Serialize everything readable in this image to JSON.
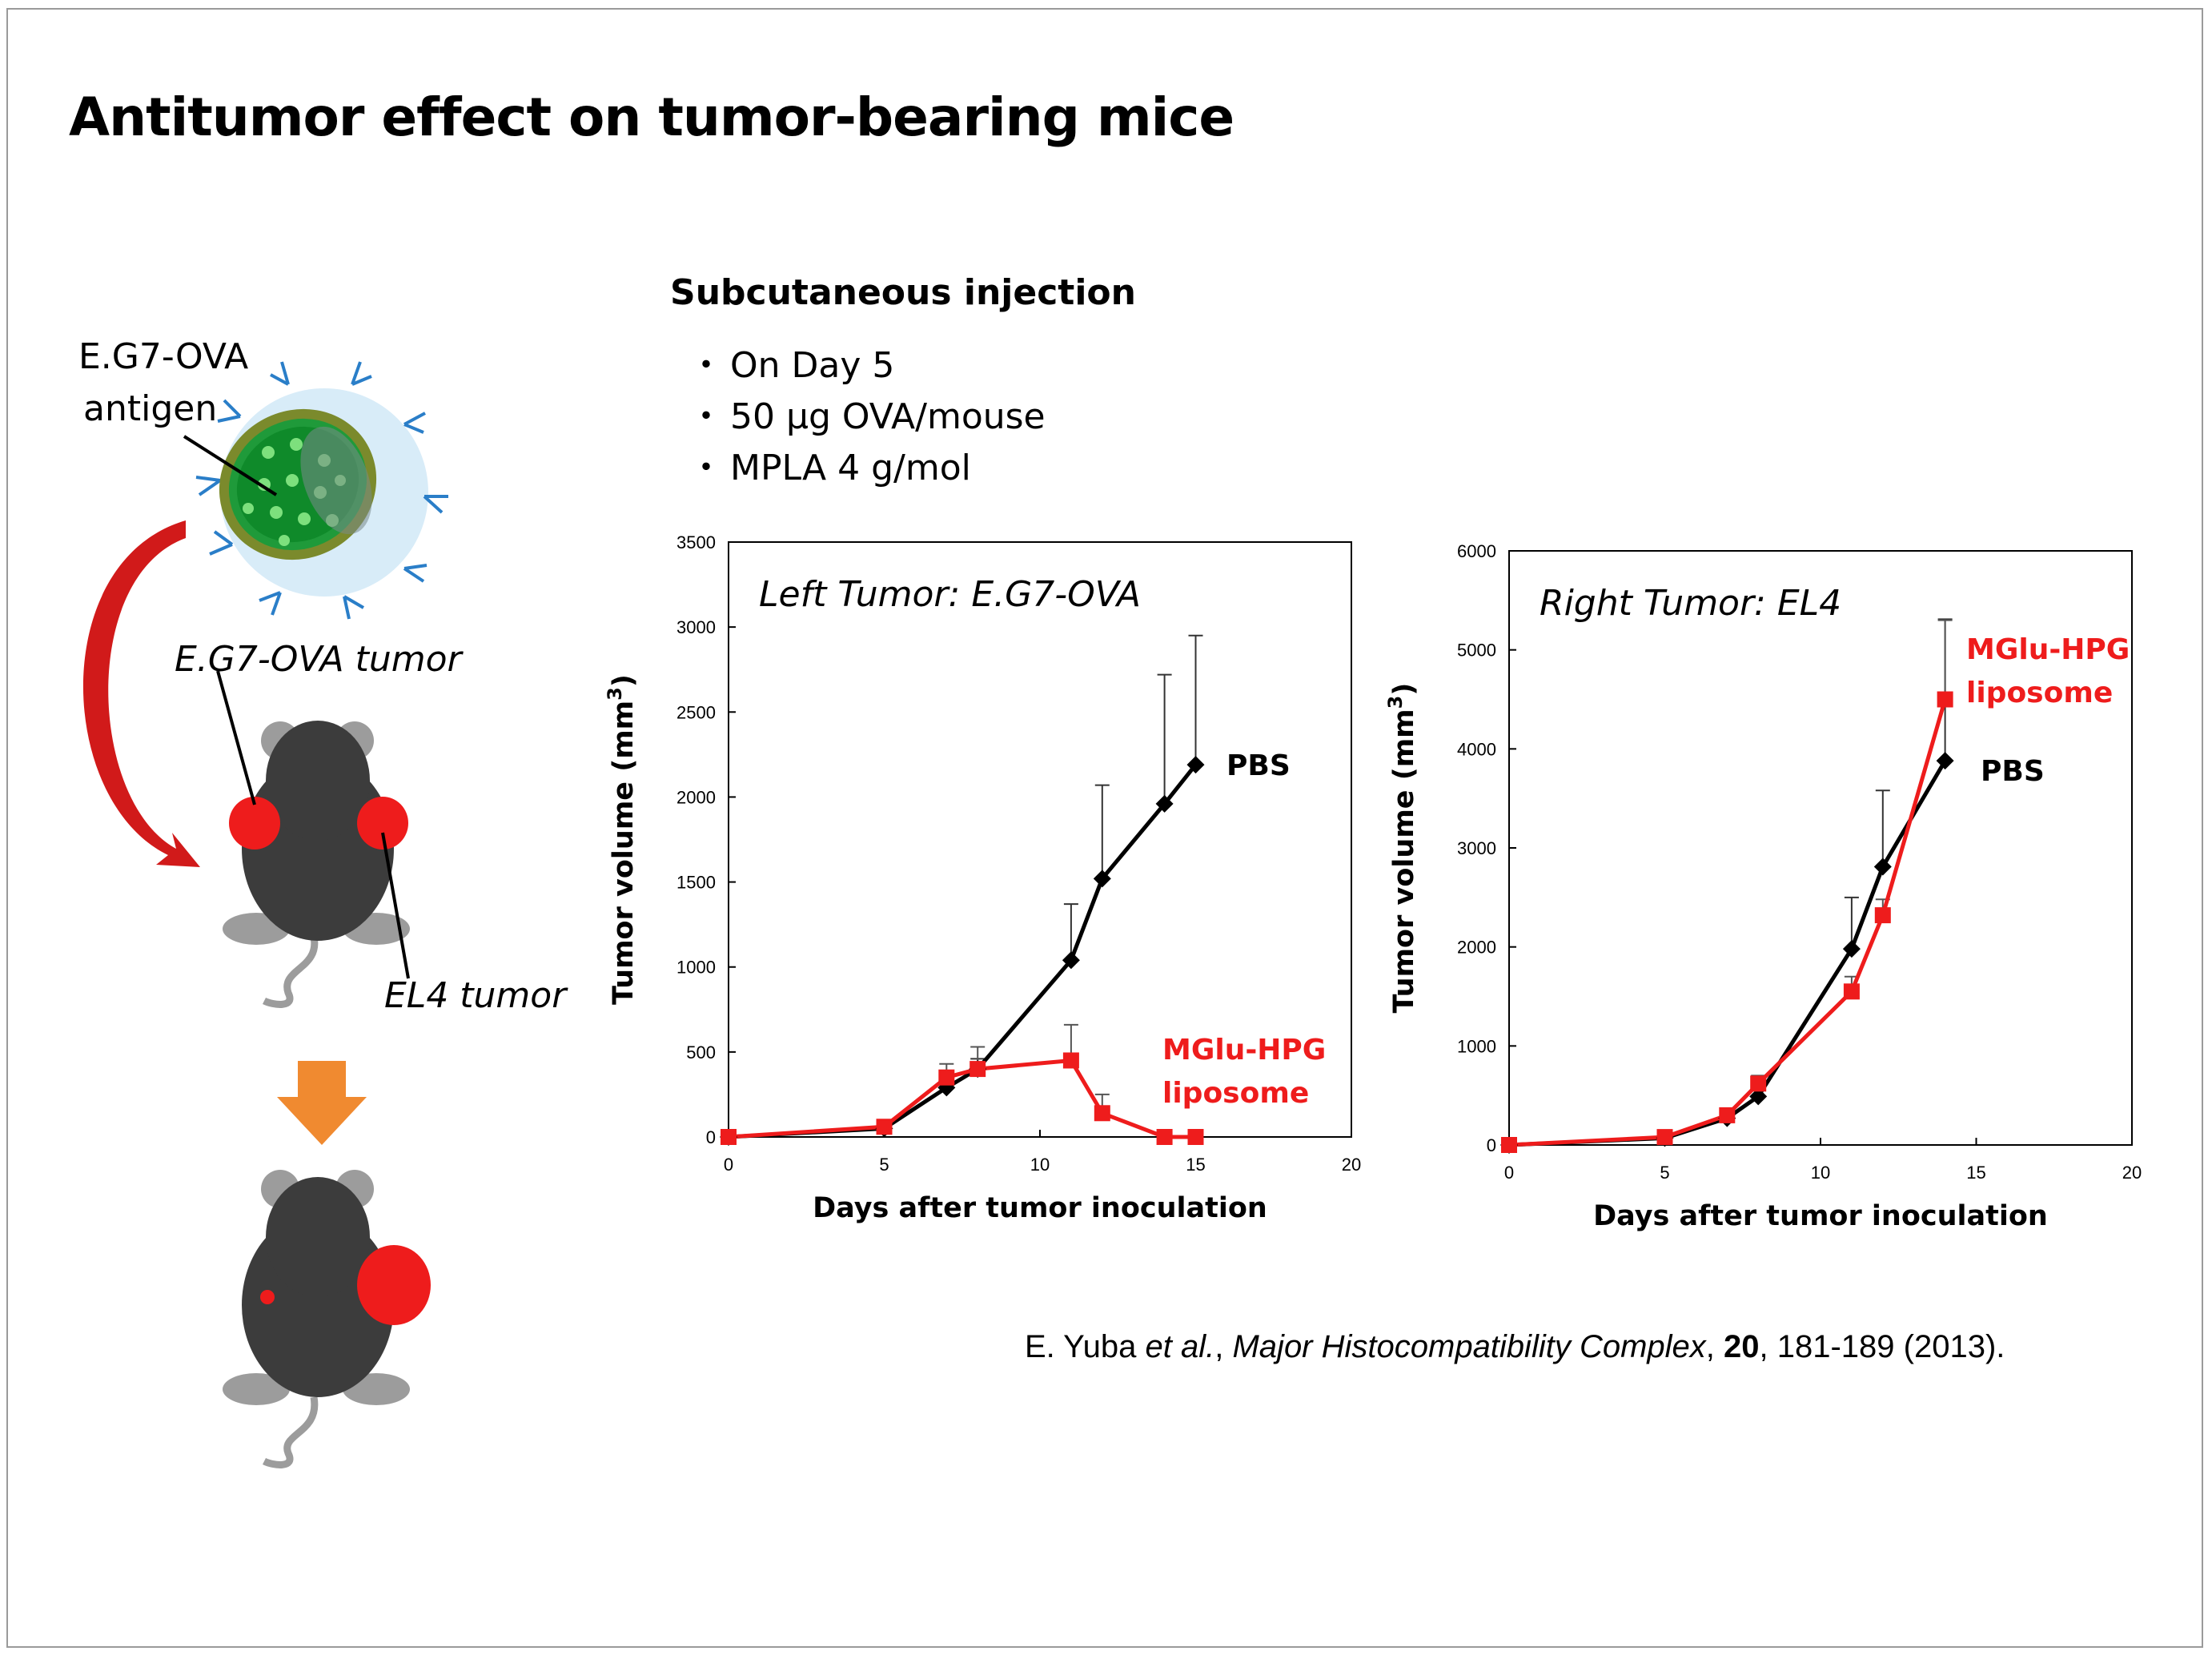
{
  "title": "Antitumor effect on tumor-bearing mice",
  "injection": {
    "title": "Subcutaneous injection",
    "bullets": [
      "On Day 5",
      "50 µg OVA/mouse",
      "MPLA 4 g/mol"
    ]
  },
  "diagram": {
    "antigen_label_1": "E.G7-OVA",
    "antigen_label_2": "antigen",
    "eg7_tumor_label": "E.G7-OVA tumor",
    "el4_tumor_label": "EL4 tumor"
  },
  "citation": {
    "authors": "E. Yuba",
    "etal": "et al.",
    "journal": "Major Histocompatibility Complex",
    "volume": "20",
    "rest": ", 181-189 (2013)."
  },
  "colors": {
    "pbs": "#000000",
    "liposome": "#ee1c1c",
    "tumor": "#ee1c1c",
    "mouse": "#3c3c3c",
    "arrow": "#f08a30"
  },
  "chart_data": [
    {
      "type": "line",
      "title": "Left Tumor: E.G7-OVA",
      "xlabel": "Days after tumor inoculation",
      "ylabel_main": "Tumor volume (mm",
      "ylabel_sup": "3",
      "ylabel_end": ")",
      "xlim": [
        0,
        20
      ],
      "ylim": [
        0,
        3500
      ],
      "xticks": [
        0,
        5,
        10,
        15,
        20
      ],
      "yticks": [
        0,
        500,
        1000,
        1500,
        2000,
        2500,
        3000,
        3500
      ],
      "series": [
        {
          "name": "PBS",
          "color": "#000000",
          "marker": "diamond",
          "x": [
            0,
            5,
            7,
            8,
            11,
            12,
            14,
            15
          ],
          "y": [
            0,
            50,
            290,
            400,
            1040,
            1520,
            1960,
            2190
          ],
          "err": [
            0,
            15,
            40,
            60,
            330,
            550,
            760,
            760
          ]
        },
        {
          "name_1": "MGlu-HPG",
          "name_2": "liposome",
          "color": "#ee1c1c",
          "marker": "square",
          "x": [
            0,
            5,
            7,
            8,
            11,
            12,
            14,
            15
          ],
          "y": [
            0,
            60,
            350,
            400,
            450,
            140,
            0,
            0
          ],
          "err": [
            0,
            15,
            80,
            130,
            210,
            110,
            0,
            0
          ]
        }
      ]
    },
    {
      "type": "line",
      "title": "Right Tumor: EL4",
      "xlabel": "Days after tumor inoculation",
      "ylabel_main": "Tumor volume (mm",
      "ylabel_sup": "3",
      "ylabel_end": ")",
      "xlim": [
        0,
        20
      ],
      "ylim": [
        0,
        6000
      ],
      "xticks": [
        0,
        5,
        10,
        15,
        20
      ],
      "yticks": [
        0,
        1000,
        2000,
        3000,
        4000,
        5000,
        6000
      ],
      "series": [
        {
          "name": "PBS",
          "color": "#000000",
          "marker": "diamond",
          "x": [
            0,
            5,
            7,
            8,
            11,
            12,
            14
          ],
          "y": [
            0,
            70,
            270,
            490,
            1980,
            2810,
            3880
          ],
          "err": [
            0,
            20,
            50,
            120,
            520,
            770,
            1430
          ]
        },
        {
          "name_1": "MGlu-HPG",
          "name_2": "liposome",
          "color": "#ee1c1c",
          "marker": "square",
          "x": [
            0,
            5,
            7,
            8,
            11,
            12,
            14
          ],
          "y": [
            0,
            80,
            300,
            620,
            1550,
            2320,
            4500
          ],
          "err": [
            0,
            20,
            60,
            80,
            150,
            160,
            800
          ]
        }
      ]
    }
  ]
}
